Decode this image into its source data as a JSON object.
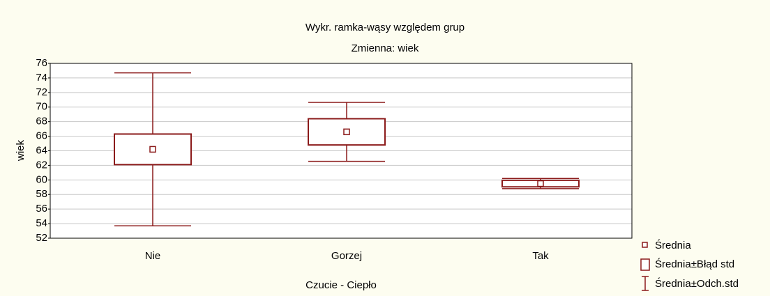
{
  "chart_data": {
    "type": "box",
    "title": "Wykr. ramka-wąsy względem grup",
    "subtitle": "Zmienna:  wiek",
    "x_label": "Czucie - Ciepło",
    "y_label": "wiek",
    "categories": [
      "Nie",
      "Gorzej",
      "Tak"
    ],
    "mean": [
      64.2,
      66.6,
      59.5
    ],
    "se": [
      2.1,
      1.8,
      0.45
    ],
    "sd": [
      10.5,
      4.05,
      0.7
    ],
    "color": "#8b1a1a",
    "legend": [
      "Średnia",
      "Średnia±Błąd std",
      "Średnia±Odch.std"
    ],
    "ylim": [
      52,
      76
    ],
    "yticks": [
      52,
      54,
      56,
      58,
      60,
      62,
      64,
      66,
      68,
      70,
      72,
      74,
      76
    ],
    "grid": true
  }
}
